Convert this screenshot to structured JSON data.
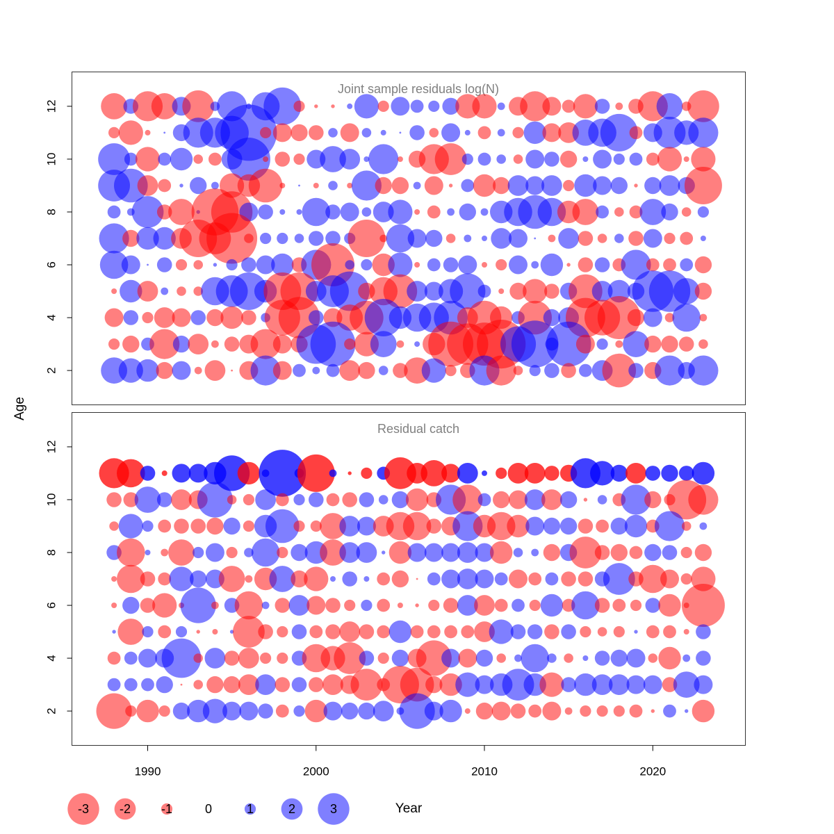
{
  "chart_data": {
    "type": "bubble",
    "xlabel": "Year",
    "ylabel": "Age",
    "xlim": [
      1985.5,
      2025.5
    ],
    "x_ticks": [
      1990,
      2000,
      2010,
      2020
    ],
    "years": [
      1988,
      1989,
      1990,
      1991,
      1992,
      1993,
      1994,
      1995,
      1996,
      1997,
      1998,
      1999,
      2000,
      2001,
      2002,
      2003,
      2004,
      2005,
      2006,
      2007,
      2008,
      2009,
      2010,
      2011,
      2012,
      2013,
      2014,
      2015,
      2016,
      2017,
      2018,
      2019,
      2020,
      2021,
      2022,
      2023
    ],
    "colors": {
      "positive": "#0000ff",
      "negative": "#ff0000"
    },
    "legend": {
      "values": [
        -3,
        -2,
        -1,
        0,
        1,
        2,
        3
      ],
      "labels": [
        "-3",
        "-2",
        "-1",
        "0",
        "1",
        "2",
        "3"
      ]
    },
    "panels": [
      {
        "title": "Joint sample residuals log(N)",
        "ylim": [
          0.7,
          13.3
        ],
        "y_ticks": [
          2,
          4,
          6,
          8,
          10,
          12
        ],
        "alpha": 0.5,
        "ages": [
          12,
          11,
          10,
          9,
          8,
          7,
          6,
          5,
          4,
          3,
          2
        ],
        "residuals": [
          [
            -1.4,
            0.8,
            -1.6,
            -1.4,
            1.0,
            -1.7,
            0.5,
            1.6,
            0.3,
            1.5,
            2.0,
            -0.6,
            -0.2,
            -0.2,
            0.3,
            1.3,
            -0.6,
            1.0,
            0.7,
            0.6,
            0.9,
            -1.3,
            -1.3,
            0.4,
            -1.0,
            -1.6,
            -1.0,
            -0.7,
            -1.3,
            0.8,
            -0.4,
            -0.8,
            -1.6,
            1.4,
            -0.5,
            -1.7
          ],
          [
            -0.6,
            -1.3,
            -0.3,
            0.1,
            0.9,
            1.6,
            1.6,
            1.8,
            3.0,
            -0.6,
            -1.0,
            -0.9,
            -0.8,
            0.5,
            -1.0,
            0.5,
            0.3,
            0.1,
            0.8,
            -0.5,
            1.0,
            0.3,
            -0.7,
            0.4,
            -0.6,
            1.2,
            -1.0,
            -1.1,
            1.4,
            1.5,
            2.0,
            -0.7,
            1.0,
            1.7,
            1.3,
            1.6
          ],
          [
            1.7,
            0.7,
            -1.3,
            0.7,
            1.2,
            -0.5,
            -0.7,
            1.1,
            2.3,
            -0.3,
            -0.8,
            -0.6,
            1.0,
            1.4,
            1.1,
            0.3,
            1.6,
            -0.3,
            -0.9,
            -1.6,
            -1.7,
            0.6,
            0.7,
            0.5,
            -0.5,
            1.0,
            0.8,
            -0.9,
            0.3,
            1.0,
            0.6,
            0.7,
            -0.7,
            -1.3,
            -0.3,
            -1.3
          ],
          [
            1.7,
            1.8,
            -1.1,
            -0.7,
            0.2,
            0.9,
            0.4,
            -1.3,
            -1.2,
            -1.8,
            -0.3,
            0.1,
            -0.3,
            0.5,
            -0.3,
            1.6,
            -0.9,
            -0.9,
            0.4,
            -1.0,
            -0.2,
            0.7,
            -1.2,
            -0.9,
            1.1,
            1.0,
            1.1,
            -0.6,
            1.2,
            1.0,
            0.9,
            -0.2,
            0.9,
            1.1,
            0.9,
            -2.0
          ],
          [
            0.7,
            0.4,
            1.7,
            -0.8,
            -1.4,
            0.2,
            -2.5,
            -2.2,
            1.0,
            0.8,
            0.3,
            0.3,
            1.5,
            0.8,
            1.0,
            0.5,
            1.1,
            1.3,
            -0.3,
            -0.7,
            0.4,
            0.9,
            0.4,
            1.2,
            1.5,
            1.8,
            1.5,
            -1.2,
            -1.4,
            0.7,
            -0.5,
            -0.7,
            1.4,
            0.9,
            -0.5,
            0.6
          ],
          [
            1.6,
            -0.9,
            1.2,
            1.2,
            -1.1,
            -2.0,
            -1.7,
            -2.7,
            -0.5,
            0.6,
            0.6,
            0.5,
            0.8,
            0.8,
            0.6,
            -2.0,
            -0.4,
            1.5,
            1.0,
            0.9,
            -0.5,
            0.4,
            0.3,
            1.1,
            1.0,
            0.1,
            -0.4,
            1.1,
            -0.8,
            -0.5,
            0.5,
            -0.8,
            1.0,
            -0.6,
            -0.7,
            0.3
          ],
          [
            1.5,
            1.0,
            0.1,
            0.8,
            -0.6,
            -0.5,
            0.2,
            0.6,
            0.8,
            1.0,
            1.2,
            -0.8,
            1.6,
            -2.3,
            0.5,
            0.6,
            -1.2,
            1.3,
            -0.3,
            0.7,
            0.8,
            1.0,
            -0.3,
            -0.6,
            1.0,
            0.4,
            1.2,
            -0.2,
            -0.8,
            0.8,
            -0.7,
            1.6,
            -0.7,
            -0.7,
            0.7,
            -0.9
          ],
          [
            -0.3,
            1.2,
            -1.1,
            0.4,
            -0.5,
            -0.5,
            1.5,
            1.7,
            2.0,
            1.2,
            -2.0,
            -2.0,
            1.1,
            1.7,
            2.1,
            -0.9,
            -1.5,
            -1.8,
            1.1,
            1.0,
            1.3,
            1.9,
            0.7,
            -0.3,
            -0.9,
            -1.3,
            -0.8,
            0.9,
            -1.8,
            1.1,
            1.2,
            0.9,
            2.2,
            2.2,
            1.4,
            -0.9
          ],
          [
            -1.0,
            0.8,
            -0.6,
            -1.1,
            -1.0,
            0.8,
            -0.9,
            -1.2,
            -0.8,
            0.5,
            -1.9,
            -2.2,
            0.8,
            -1.0,
            -1.4,
            -1.8,
            2.0,
            1.2,
            1.5,
            1.6,
            1.8,
            -1.1,
            -1.8,
            -1.2,
            0.7,
            -1.8,
            0.9,
            1.1,
            -2.1,
            -1.9,
            -2.3,
            -0.9,
            1.0,
            -0.5,
            1.5,
            -0.4
          ],
          [
            -0.6,
            -0.9,
            0.7,
            -1.6,
            0.9,
            -1.1,
            -0.4,
            -0.8,
            -1.0,
            -1.6,
            -1.0,
            -0.9,
            2.1,
            2.4,
            -0.6,
            -1.3,
            1.4,
            -0.4,
            0.3,
            -1.2,
            -2.4,
            -2.2,
            -2.3,
            -2.6,
            1.9,
            2.5,
            0.7,
            2.4,
            -1.0,
            0.6,
            -0.4,
            1.4,
            -0.9,
            -0.9,
            -0.8,
            -0.5
          ],
          [
            1.4,
            1.3,
            1.2,
            -0.9,
            1.0,
            -0.4,
            -1.1,
            -0.1,
            -1.0,
            1.6,
            -1.0,
            0.7,
            0.4,
            0.7,
            -1.1,
            -0.9,
            0.5,
            -0.8,
            -1.4,
            1.3,
            -0.6,
            -0.8,
            1.6,
            -1.6,
            -0.5,
            0.6,
            0.8,
            -0.8,
            0.7,
            1.1,
            -1.8,
            0.8,
            -0.9,
            1.6,
            0.9,
            1.6
          ]
        ]
      },
      {
        "title": "Residual catch",
        "ylim": [
          0.7,
          13.3
        ],
        "y_ticks": [
          2,
          4,
          6,
          8,
          10,
          12
        ],
        "alpha": 0.5,
        "top_row_alpha": 0.75,
        "ages": [
          11,
          10,
          9,
          8,
          7,
          6,
          5,
          4,
          3,
          2
        ],
        "residuals": [
          [
            -1.6,
            -1.5,
            0.8,
            -0.3,
            1.0,
            1.0,
            1.2,
            1.9,
            -1.2,
            0.4,
            2.5,
            0.5,
            -2.0,
            0.4,
            -0.2,
            -0.6,
            0.7,
            -1.7,
            -1.1,
            -1.4,
            -1.0,
            1.1,
            0.3,
            -0.6,
            -1.1,
            -1.1,
            -0.8,
            -0.9,
            1.6,
            1.3,
            0.9,
            -1.1,
            0.8,
            0.9,
            0.8,
            1.2
          ],
          [
            -0.8,
            -0.8,
            1.4,
            0.8,
            -1.1,
            -1.0,
            1.9,
            -0.5,
            -0.6,
            1.1,
            -0.7,
            0.6,
            0.8,
            -0.7,
            -0.8,
            0.8,
            0.5,
            0.9,
            -1.2,
            -0.8,
            1.6,
            -1.6,
            0.7,
            -0.9,
            -1.0,
            1.1,
            -1.1,
            0.9,
            -0.2,
            0.5,
            -0.7,
            1.6,
            -0.9,
            -0.6,
            -2.1,
            -1.6
          ],
          [
            -0.5,
            1.3,
            0.6,
            -0.7,
            -0.8,
            -0.8,
            -0.9,
            0.9,
            -0.6,
            1.2,
            1.8,
            -0.6,
            -0.6,
            -1.4,
            1.1,
            1.0,
            -1.1,
            -1.5,
            -1.5,
            -0.8,
            -1.0,
            1.6,
            -1.2,
            -1.5,
            -1.2,
            1.0,
            0.9,
            0.9,
            -0.8,
            -0.7,
            0.9,
            1.2,
            -0.7,
            1.6,
            -0.5,
            0.4
          ],
          [
            0.8,
            -1.5,
            0.3,
            -0.4,
            -1.4,
            0.6,
            1.0,
            -0.6,
            0.5,
            1.5,
            -0.6,
            0.9,
            1.2,
            -1.4,
            1.1,
            1.1,
            0.2,
            -1.2,
            1.0,
            1.0,
            1.0,
            1.1,
            1.0,
            -1.2,
            0.5,
            0.4,
            -0.9,
            0.9,
            -1.7,
            -0.8,
            -0.9,
            -0.7,
            0.9,
            0.8,
            -0.6,
            -0.9
          ],
          [
            -0.3,
            -1.5,
            -0.8,
            -0.7,
            1.3,
            0.9,
            1.0,
            -1.4,
            -0.4,
            -1.2,
            1.4,
            -0.9,
            -1.3,
            0.3,
            0.8,
            0.3,
            -0.7,
            -0.9,
            -0.1,
            0.7,
            1.0,
            1.1,
            1.0,
            0.7,
            -1.0,
            -0.7,
            0.7,
            -0.8,
            -0.8,
            0.8,
            1.7,
            -0.8,
            -1.5,
            -1.0,
            -0.6,
            -1.3
          ],
          [
            -0.3,
            0.9,
            -0.8,
            -1.3,
            -0.3,
            1.9,
            -0.4,
            0.8,
            -1.5,
            0.4,
            -0.8,
            1.1,
            -1.0,
            -0.8,
            -0.6,
            0.6,
            -0.7,
            -0.3,
            -0.2,
            -0.6,
            -0.8,
            1.1,
            -1.1,
            -0.7,
            0.7,
            -0.6,
            1.2,
            -0.7,
            1.5,
            -0.8,
            -0.7,
            -0.6,
            0.8,
            -1.2,
            -0.3,
            -2.3
          ],
          [
            0.2,
            -1.4,
            0.6,
            -0.7,
            0.6,
            -0.2,
            -0.3,
            0.2,
            -1.7,
            -0.8,
            -0.6,
            0.8,
            -0.7,
            -0.8,
            -1.1,
            -0.8,
            -0.7,
            1.2,
            -0.7,
            -0.7,
            -0.7,
            -0.7,
            -1.1,
            1.3,
            0.8,
            0.8,
            -0.8,
            0.8,
            -0.6,
            -0.5,
            -0.6,
            0.2,
            -0.7,
            -0.7,
            -0.3,
            0.8
          ],
          [
            -0.7,
            0.7,
            1.0,
            1.0,
            2.1,
            -0.5,
            1.1,
            -0.8,
            -1.1,
            -0.6,
            -0.6,
            0.8,
            -1.5,
            -1.3,
            -1.7,
            0.8,
            -0.6,
            0.9,
            -1.0,
            -1.9,
            1.0,
            -1.0,
            0.9,
            -0.5,
            0.4,
            1.5,
            0.5,
            -0.5,
            0.3,
            0.8,
            0.9,
            1.0,
            -0.5,
            -1.2,
            0.4,
            0.8
          ],
          [
            0.7,
            0.7,
            0.7,
            0.9,
            -0.1,
            -0.5,
            -0.9,
            -0.9,
            -1.1,
            1.1,
            -0.8,
            0.8,
            -0.8,
            -1.1,
            -1.0,
            -1.7,
            -0.7,
            -2.0,
            -1.8,
            -0.9,
            -1.2,
            1.3,
            1.0,
            1.2,
            1.7,
            1.2,
            -1.3,
            0.8,
            1.2,
            1.1,
            1.1,
            1.0,
            1.0,
            -0.8,
            1.4,
            1.0
          ],
          [
            -1.9,
            -0.6,
            -1.2,
            -0.6,
            0.9,
            1.2,
            1.3,
            1.0,
            1.0,
            0.8,
            -0.7,
            0.6,
            -1.2,
            1.0,
            0.9,
            0.9,
            1.1,
            0.4,
            1.9,
            1.0,
            1.2,
            -0.3,
            -0.9,
            -1.0,
            -0.8,
            -0.7,
            -1.0,
            -0.4,
            -0.6,
            -0.6,
            -0.6,
            -0.7,
            -0.2,
            0.7,
            0.2,
            -1.2
          ]
        ]
      }
    ]
  }
}
